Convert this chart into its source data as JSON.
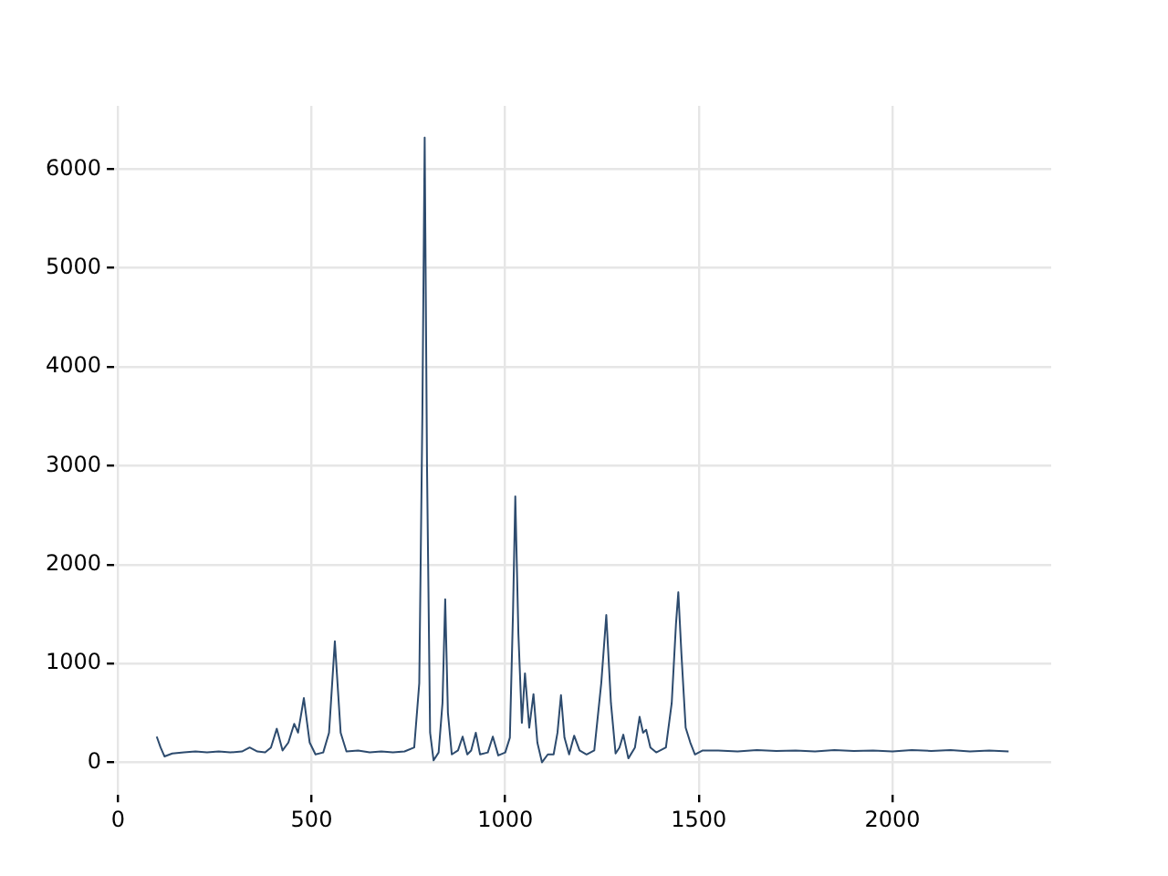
{
  "chart_data": {
    "type": "line",
    "color": "#2d4b6e",
    "marker": "none",
    "grid": true,
    "xlim": [
      -10,
      2410
    ],
    "ylim": [
      -330,
      6640
    ],
    "xticks": [
      0,
      500,
      1000,
      1500,
      2000
    ],
    "yticks": [
      0,
      1000,
      2000,
      3000,
      4000,
      5000,
      6000
    ],
    "x": [
      100,
      110,
      120,
      140,
      170,
      200,
      230,
      260,
      290,
      320,
      340,
      360,
      380,
      395,
      410,
      425,
      440,
      455,
      465,
      480,
      495,
      510,
      530,
      545,
      560,
      575,
      590,
      620,
      650,
      680,
      710,
      740,
      765,
      778,
      786,
      792,
      798,
      806,
      815,
      828,
      838,
      845,
      852,
      862,
      878,
      890,
      902,
      912,
      924,
      935,
      955,
      968,
      982,
      1000,
      1012,
      1020,
      1026,
      1034,
      1043,
      1051,
      1062,
      1073,
      1083,
      1095,
      1110,
      1125,
      1135,
      1144,
      1153,
      1165,
      1178,
      1192,
      1210,
      1230,
      1248,
      1261,
      1273,
      1285,
      1295,
      1305,
      1318,
      1335,
      1347,
      1356,
      1364,
      1375,
      1390,
      1415,
      1430,
      1441,
      1447,
      1455,
      1466,
      1478,
      1490,
      1510,
      1550,
      1600,
      1650,
      1700,
      1750,
      1800,
      1850,
      1900,
      1950,
      2000,
      2050,
      2100,
      2150,
      2200,
      2250,
      2300
    ],
    "values": [
      260,
      150,
      60,
      90,
      100,
      110,
      100,
      110,
      100,
      110,
      150,
      110,
      100,
      150,
      340,
      120,
      200,
      390,
      300,
      650,
      200,
      80,
      100,
      300,
      1225,
      300,
      110,
      120,
      100,
      110,
      100,
      110,
      150,
      800,
      3500,
      6320,
      3000,
      300,
      20,
      100,
      600,
      1650,
      500,
      80,
      120,
      260,
      80,
      120,
      300,
      80,
      100,
      260,
      70,
      100,
      250,
      1500,
      2690,
      1300,
      400,
      900,
      350,
      690,
      200,
      0,
      80,
      80,
      300,
      680,
      250,
      80,
      270,
      120,
      80,
      120,
      800,
      1490,
      600,
      90,
      150,
      280,
      40,
      150,
      460,
      300,
      330,
      150,
      100,
      150,
      600,
      1400,
      1720,
      1100,
      350,
      200,
      80,
      120,
      120,
      110,
      125,
      115,
      120,
      110,
      125,
      115,
      120,
      110,
      125,
      115,
      125,
      110,
      120,
      110
    ]
  }
}
